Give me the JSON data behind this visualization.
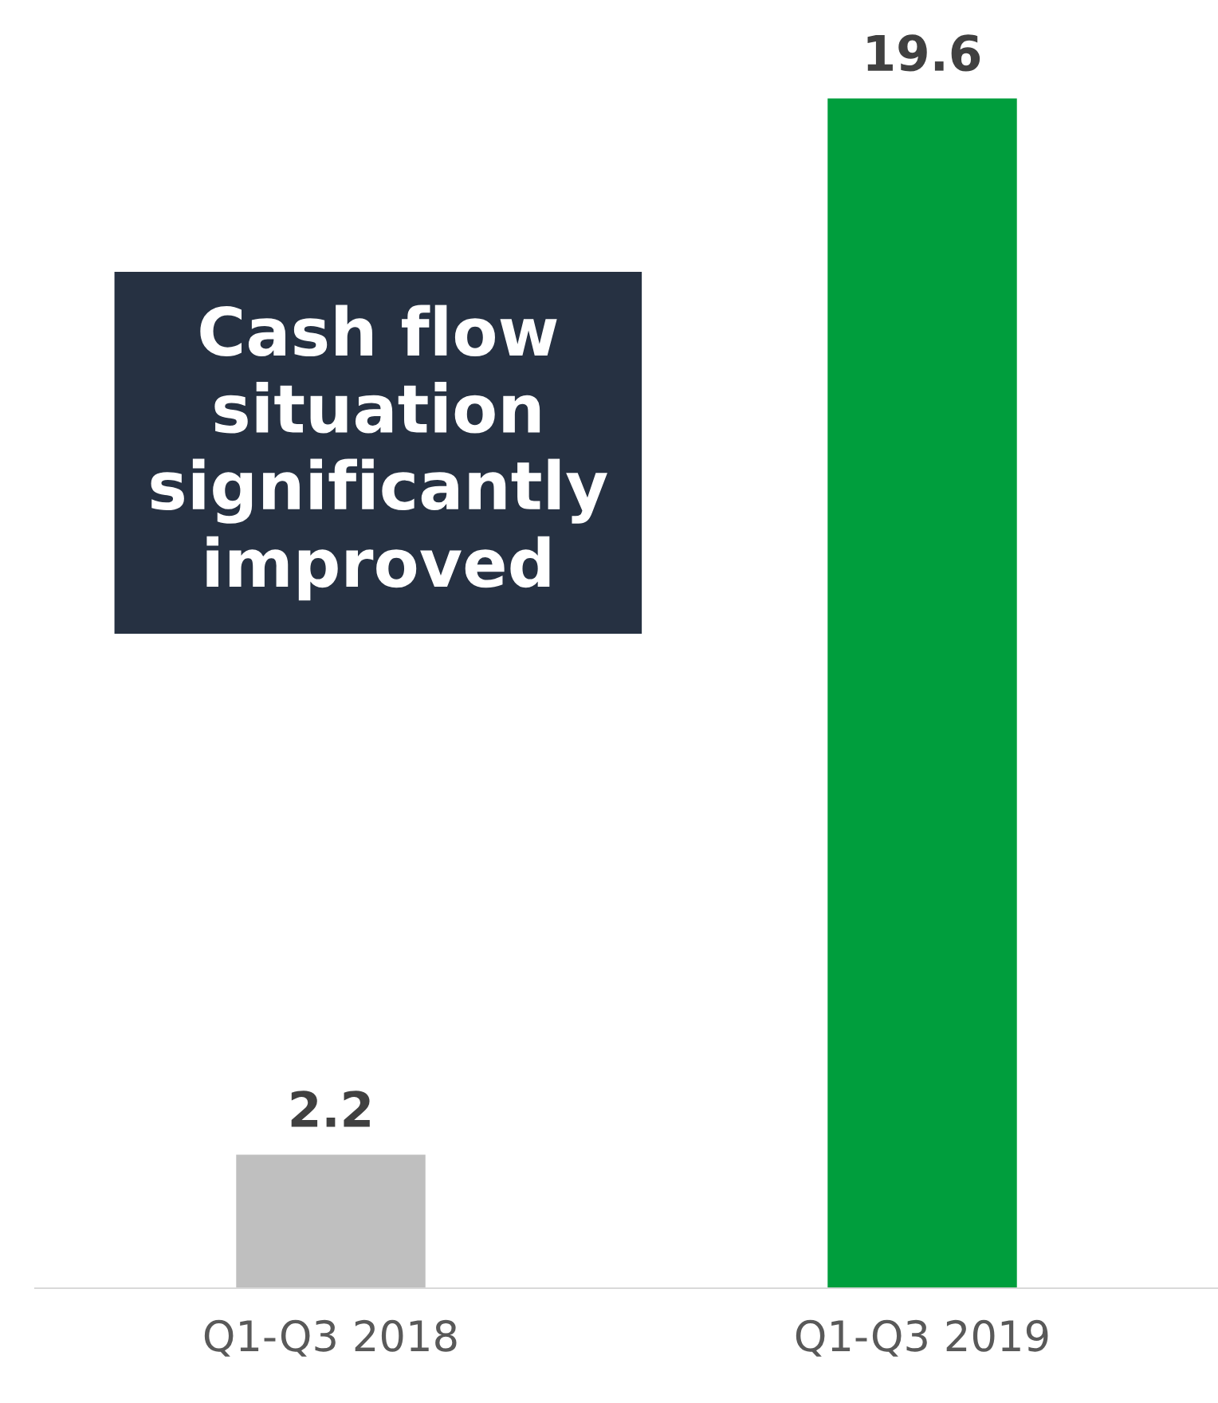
{
  "chart_data": {
    "type": "bar",
    "categories": [
      "Q1-Q3 2018",
      "Q1-Q3 2019"
    ],
    "values": [
      2.2,
      19.6
    ],
    "colors": [
      "#bfbfbf",
      "#009e3d"
    ],
    "data_labels": true,
    "grid": false,
    "annotations": [
      "Cash flow\nsituation\nsignificantly\nimproved"
    ]
  }
}
